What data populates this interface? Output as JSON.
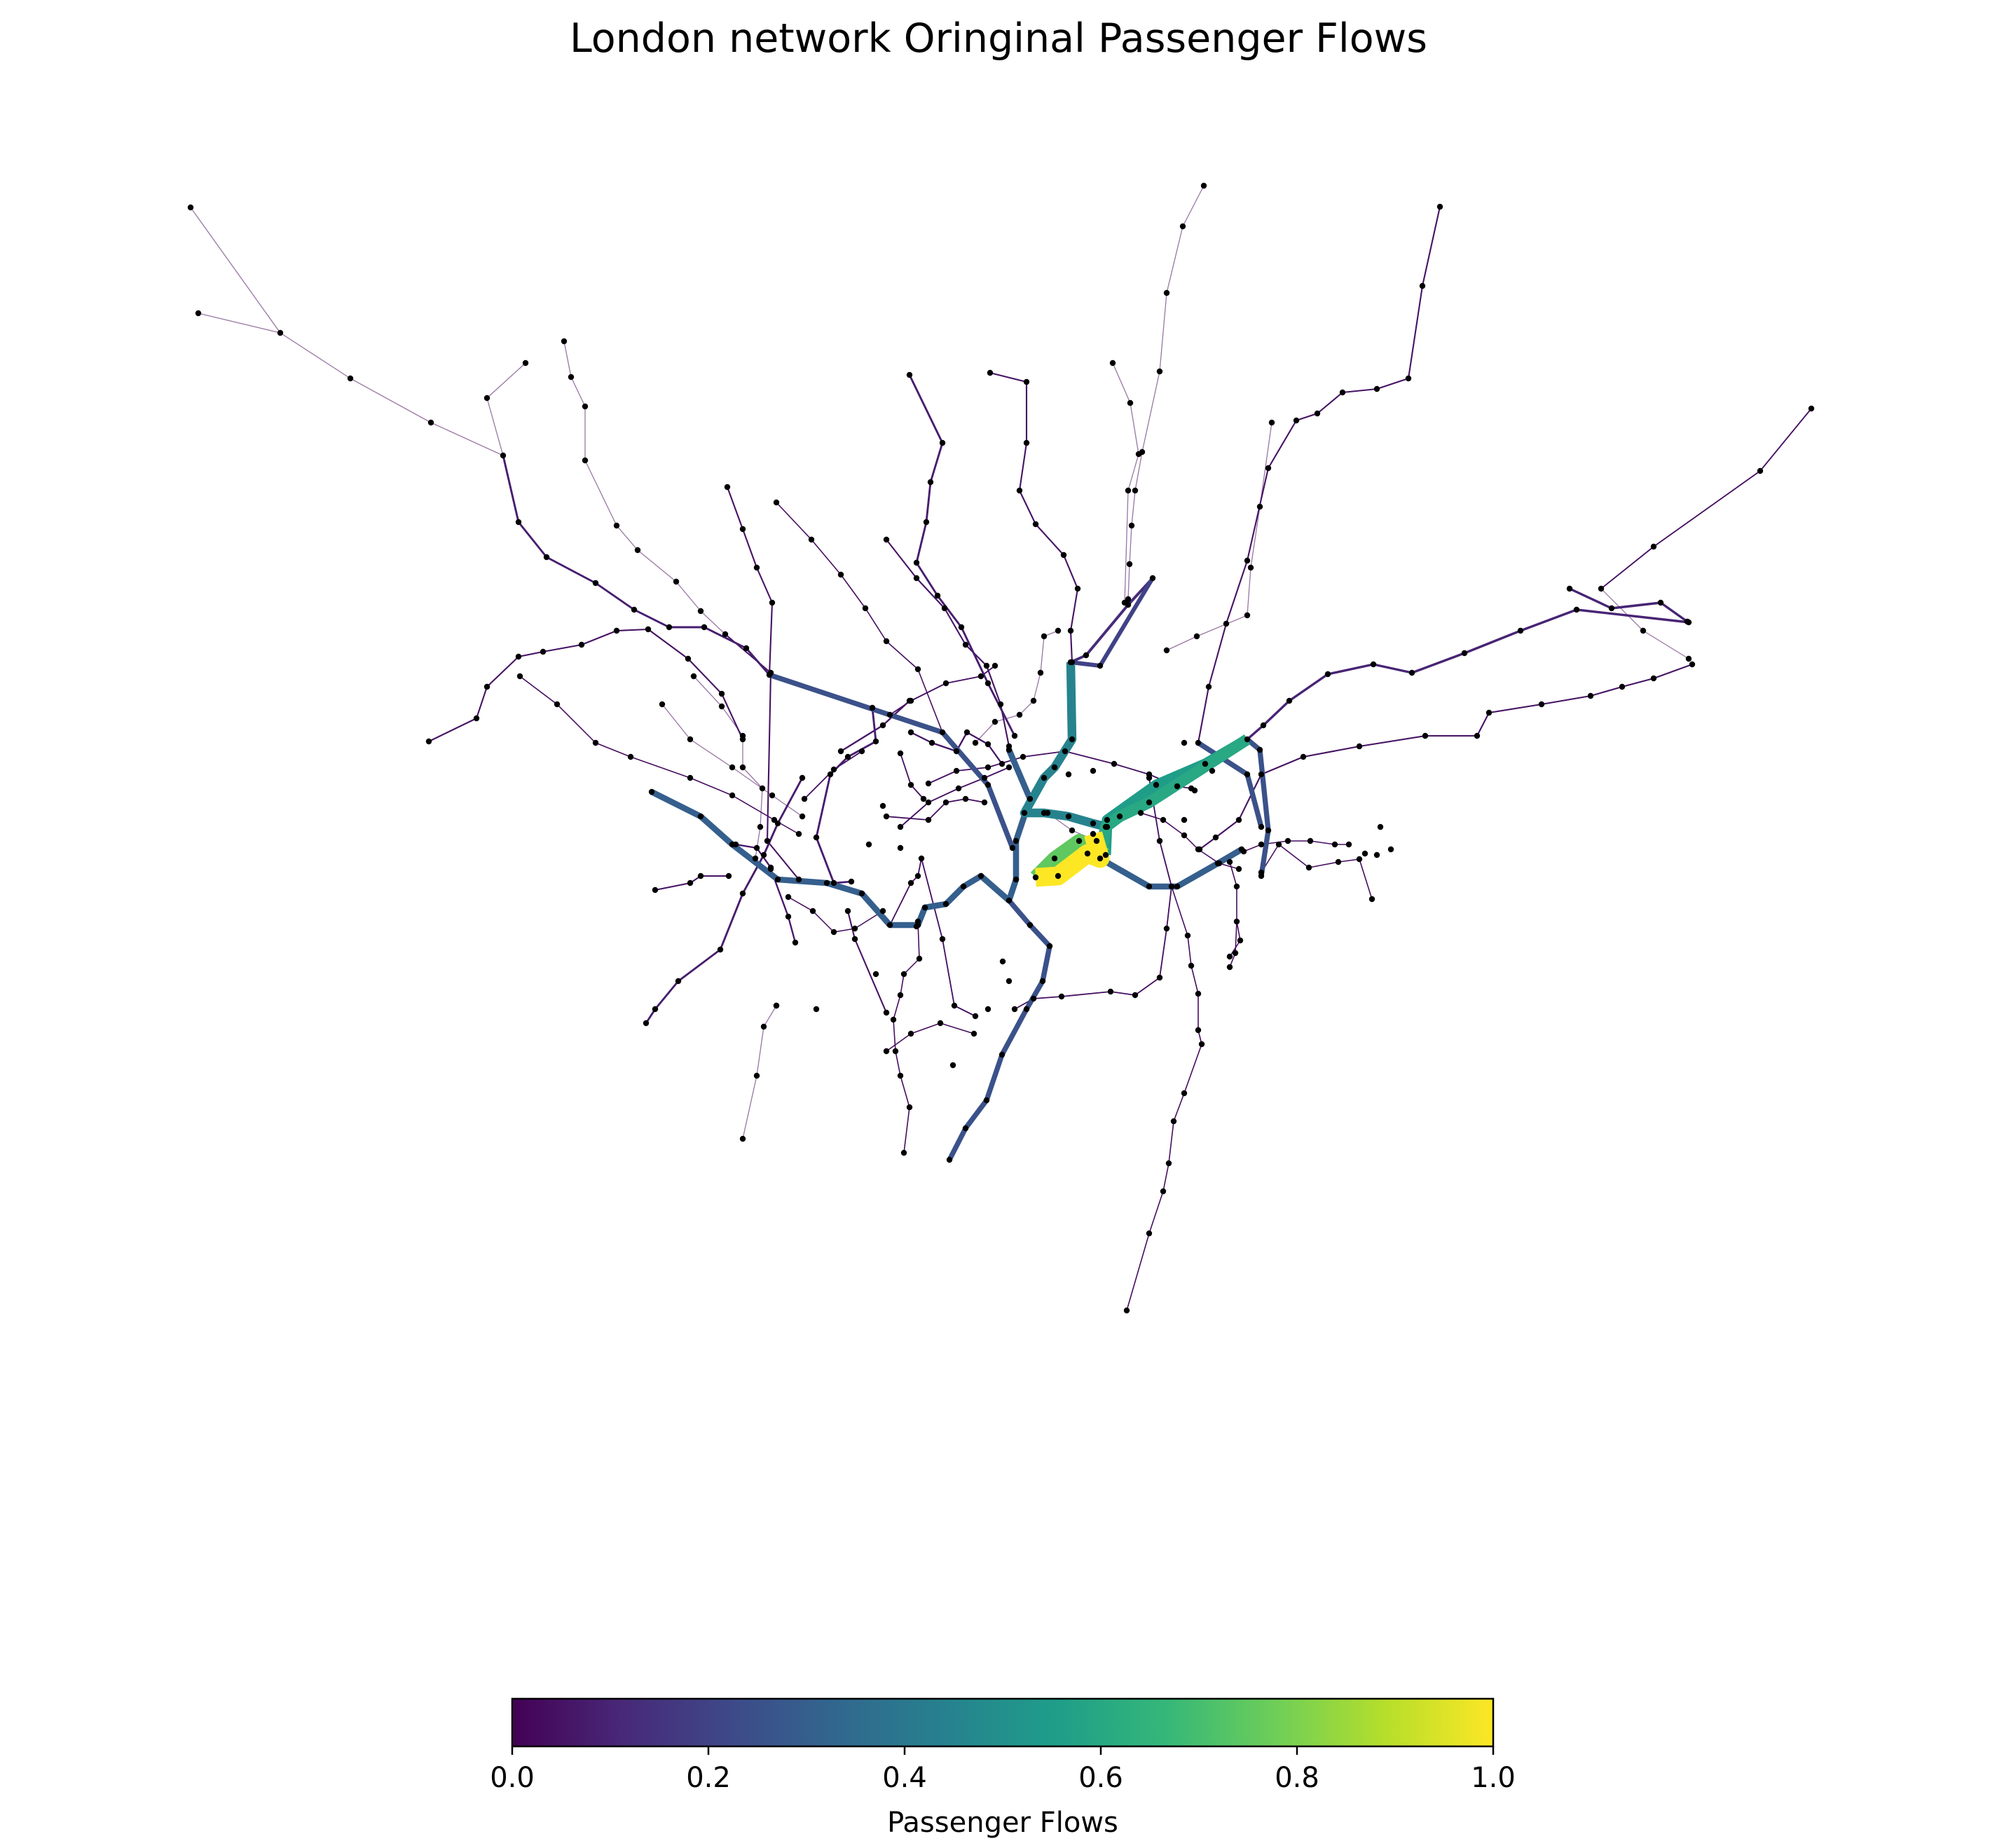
{
  "chart_data": {
    "type": "network",
    "title": "London network Oringinal Passenger Flows",
    "colormap": "viridis",
    "colormap_stops": [
      "#440154",
      "#482878",
      "#3e4989",
      "#31688e",
      "#26828e",
      "#1f9e89",
      "#35b779",
      "#6ece58",
      "#b5de2b",
      "#fde725"
    ],
    "colorbar": {
      "label": "Passenger Flows",
      "range": [
        0.0,
        1.0
      ],
      "ticks": [
        0.0,
        0.2,
        0.4,
        0.6,
        0.8,
        1.0
      ],
      "tick_labels": [
        "0.0",
        "0.2",
        "0.4",
        "0.6",
        "0.8",
        "1.0"
      ]
    },
    "edges_flow_summary": {
      "max_flow_segment": 1.0,
      "high_flow_segments": [
        0.55,
        0.75,
        0.45,
        0.6,
        0.45,
        0.6
      ],
      "medium_flow_segments": [
        0.3,
        0.3,
        0.3,
        0.25,
        0.3,
        0.3,
        0.25
      ],
      "low_flow_segments": [
        0.1,
        0.05,
        0.02
      ]
    }
  }
}
